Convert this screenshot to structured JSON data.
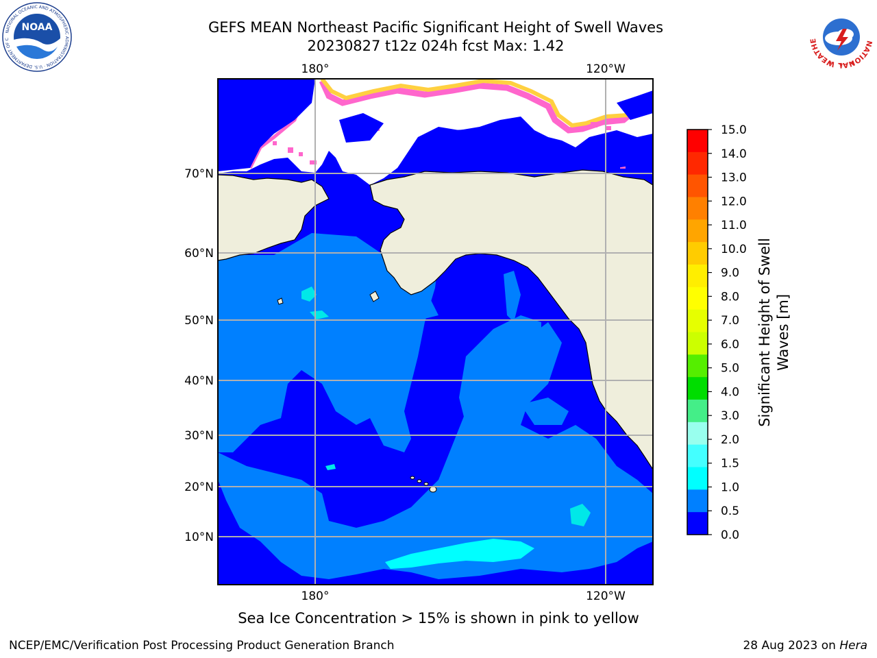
{
  "header": {
    "title_line1": "GEFS MEAN Northeast Pacific Significant Height of Swell Waves",
    "title_line2": "20230827 t12z 024h fcst   Max: 1.42"
  },
  "map": {
    "lon_labels_top": [
      "180°",
      "120°W"
    ],
    "lon_labels_bottom": [
      "180°",
      "120°W"
    ],
    "lat_labels": [
      "70°N",
      "60°N",
      "50°N",
      "40°N",
      "30°N",
      "20°N",
      "10°N"
    ],
    "colors": {
      "land": "#efeedc",
      "ocean_low": "#0000ff",
      "ocean_mid": "#0080ff",
      "ocean_cyan": "#00ffff",
      "ice_pink": "#ff66cc",
      "ice_yellow": "#ffd040",
      "grid": "#b0b0b0"
    }
  },
  "colorbar": {
    "label_line1": "Significant Height of Swell",
    "label_line2": "Waves [m]",
    "ticks": [
      "15.0",
      "14.0",
      "13.0",
      "12.0",
      "11.0",
      "10.0",
      "9.0",
      "8.0",
      "7.0",
      "6.0",
      "5.0",
      "4.0",
      "3.0",
      "2.0",
      "1.5",
      "1.0",
      "0.5",
      "0.0"
    ],
    "colors_top_to_bottom": [
      "#ff0000",
      "#ff2800",
      "#ff5500",
      "#ff8000",
      "#ffa500",
      "#ffcc00",
      "#ffee00",
      "#ffff00",
      "#e6ff00",
      "#ccff00",
      "#55ee00",
      "#00dd00",
      "#44ee88",
      "#99ffee",
      "#44ffff",
      "#00ffff",
      "#0080ff",
      "#0000ff"
    ]
  },
  "footer": {
    "note": "Sea Ice Concentration > 15% is shown in pink to yellow",
    "credit": "NCEP/EMC/Verification Post Processing Product Generation Branch",
    "date_text": "28 Aug 2023 on ",
    "date_machine": "Hera"
  },
  "logos": {
    "noaa_text": "NOAA",
    "noaa_ring_text": "NATIONAL OCEANIC AND ATMOSPHERIC ADMINISTRATION · U.S. DEPARTMENT OF COMMERCE",
    "nws_ring_text": "NATIONAL WEATHER SERVICE"
  }
}
